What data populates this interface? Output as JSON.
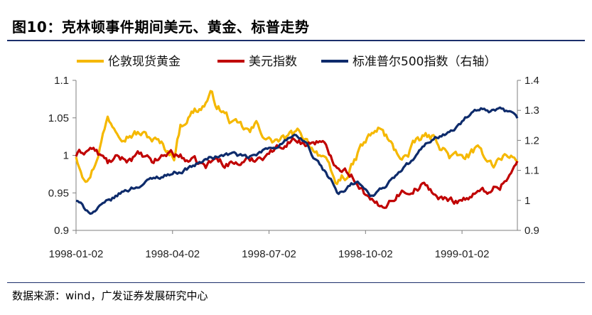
{
  "figure": {
    "title": "图10：克林顿事件期间美元、黄金、标普走势",
    "source": "数据来源：wind，广发证券发展研究中心"
  },
  "chart_data": {
    "type": "line",
    "title": "图10：克林顿事件期间美元、黄金、标普走势",
    "x_ticks": [
      "1998-01-02",
      "1998-04-02",
      "1998-07-02",
      "1998-10-02",
      "1999-01-02"
    ],
    "x_tick_index": [
      0,
      61,
      122,
      183,
      244
    ],
    "n_points": 280,
    "left_axis": {
      "min": 0.9,
      "max": 1.1,
      "ticks": [
        "0.9",
        "0.95",
        "1",
        "1.05",
        "1.1"
      ],
      "tick_values": [
        0.9,
        0.95,
        1.0,
        1.05,
        1.1
      ]
    },
    "right_axis": {
      "min": 0.9,
      "max": 1.4,
      "ticks": [
        "0.9",
        "1",
        "1.1",
        "1.2",
        "1.3",
        "1.4"
      ],
      "tick_values": [
        0.9,
        1.0,
        1.1,
        1.2,
        1.3,
        1.4
      ]
    },
    "series": [
      {
        "name": "伦敦现货黄金",
        "axis": "left",
        "color": "#f5b800",
        "anchors": [
          [
            0,
            1.0
          ],
          [
            4,
            0.98
          ],
          [
            8,
            0.97
          ],
          [
            12,
            0.99
          ],
          [
            16,
            1.02
          ],
          [
            20,
            1.05
          ],
          [
            24,
            1.04
          ],
          [
            30,
            1.03
          ],
          [
            40,
            1.03
          ],
          [
            50,
            1.02
          ],
          [
            56,
            1.01
          ],
          [
            62,
            1.0
          ],
          [
            66,
            1.04
          ],
          [
            70,
            1.05
          ],
          [
            75,
            1.06
          ],
          [
            80,
            1.065
          ],
          [
            85,
            1.08
          ],
          [
            88,
            1.07
          ],
          [
            92,
            1.06
          ],
          [
            96,
            1.05
          ],
          [
            100,
            1.04
          ],
          [
            106,
            1.035
          ],
          [
            110,
            1.03
          ],
          [
            114,
            1.04
          ],
          [
            118,
            1.03
          ],
          [
            122,
            1.02
          ],
          [
            130,
            1.02
          ],
          [
            136,
            1.025
          ],
          [
            142,
            1.03
          ],
          [
            146,
            1.02
          ],
          [
            150,
            1.01
          ],
          [
            156,
            1.0
          ],
          [
            160,
            0.98
          ],
          [
            164,
            0.96
          ],
          [
            168,
            0.97
          ],
          [
            172,
            0.975
          ],
          [
            176,
            0.99
          ],
          [
            180,
            1.01
          ],
          [
            184,
            1.02
          ],
          [
            188,
            1.03
          ],
          [
            192,
            1.035
          ],
          [
            196,
            1.025
          ],
          [
            200,
            1.01
          ],
          [
            204,
            1.0
          ],
          [
            210,
            1.0
          ],
          [
            216,
            1.02
          ],
          [
            222,
            1.025
          ],
          [
            228,
            1.02
          ],
          [
            232,
            1.01
          ],
          [
            236,
            1.0
          ],
          [
            244,
            0.995
          ],
          [
            252,
            1.005
          ],
          [
            258,
            1.0
          ],
          [
            264,
            0.99
          ],
          [
            270,
            1.0
          ],
          [
            279,
            0.995
          ]
        ],
        "noise": 0.006
      },
      {
        "name": "美元指数",
        "axis": "left",
        "color": "#c00000",
        "anchors": [
          [
            0,
            1.0
          ],
          [
            5,
            1.005
          ],
          [
            10,
            1.01
          ],
          [
            15,
            1.0
          ],
          [
            20,
            0.99
          ],
          [
            26,
            0.995
          ],
          [
            32,
            0.995
          ],
          [
            40,
            1.0
          ],
          [
            48,
            0.99
          ],
          [
            56,
            1.0
          ],
          [
            60,
            1.005
          ],
          [
            64,
            1.0
          ],
          [
            70,
            0.995
          ],
          [
            76,
            0.99
          ],
          [
            82,
            0.985
          ],
          [
            88,
            0.995
          ],
          [
            94,
            0.99
          ],
          [
            100,
            0.99
          ],
          [
            106,
            0.99
          ],
          [
            112,
            0.995
          ],
          [
            118,
            1.0
          ],
          [
            122,
            1.005
          ],
          [
            128,
            1.01
          ],
          [
            134,
            1.02
          ],
          [
            140,
            1.02
          ],
          [
            146,
            1.015
          ],
          [
            152,
            1.02
          ],
          [
            156,
            1.015
          ],
          [
            160,
            1.0
          ],
          [
            164,
            0.99
          ],
          [
            168,
            0.985
          ],
          [
            172,
            0.98
          ],
          [
            176,
            0.97
          ],
          [
            180,
            0.96
          ],
          [
            184,
            0.945
          ],
          [
            188,
            0.935
          ],
          [
            192,
            0.93
          ],
          [
            198,
            0.94
          ],
          [
            204,
            0.95
          ],
          [
            212,
            0.955
          ],
          [
            218,
            0.96
          ],
          [
            224,
            0.955
          ],
          [
            228,
            0.945
          ],
          [
            232,
            0.94
          ],
          [
            240,
            0.94
          ],
          [
            248,
            0.945
          ],
          [
            256,
            0.95
          ],
          [
            262,
            0.955
          ],
          [
            268,
            0.96
          ],
          [
            274,
            0.975
          ],
          [
            279,
            0.99
          ]
        ],
        "noise": 0.005
      },
      {
        "name": "标准普尔500指数（右轴）",
        "axis": "right",
        "color": "#0e2b6b",
        "anchors": [
          [
            0,
            1.0
          ],
          [
            5,
            0.975
          ],
          [
            10,
            0.96
          ],
          [
            16,
            0.98
          ],
          [
            22,
            1.0
          ],
          [
            30,
            1.03
          ],
          [
            40,
            1.05
          ],
          [
            50,
            1.075
          ],
          [
            60,
            1.09
          ],
          [
            68,
            1.1
          ],
          [
            76,
            1.12
          ],
          [
            84,
            1.14
          ],
          [
            92,
            1.15
          ],
          [
            100,
            1.155
          ],
          [
            108,
            1.14
          ],
          [
            114,
            1.15
          ],
          [
            120,
            1.17
          ],
          [
            126,
            1.18
          ],
          [
            132,
            1.2
          ],
          [
            138,
            1.21
          ],
          [
            142,
            1.2
          ],
          [
            146,
            1.19
          ],
          [
            150,
            1.14
          ],
          [
            154,
            1.12
          ],
          [
            158,
            1.09
          ],
          [
            162,
            1.06
          ],
          [
            166,
            1.02
          ],
          [
            170,
            1.03
          ],
          [
            174,
            1.05
          ],
          [
            178,
            1.06
          ],
          [
            182,
            1.04
          ],
          [
            186,
            1.01
          ],
          [
            190,
            1.03
          ],
          [
            196,
            1.05
          ],
          [
            202,
            1.08
          ],
          [
            208,
            1.11
          ],
          [
            214,
            1.14
          ],
          [
            220,
            1.18
          ],
          [
            226,
            1.21
          ],
          [
            232,
            1.22
          ],
          [
            238,
            1.23
          ],
          [
            244,
            1.26
          ],
          [
            250,
            1.29
          ],
          [
            256,
            1.3
          ],
          [
            262,
            1.29
          ],
          [
            268,
            1.3
          ],
          [
            274,
            1.29
          ],
          [
            279,
            1.27
          ]
        ],
        "noise": 0.007
      }
    ]
  },
  "legend": {
    "items": [
      {
        "label": "伦敦现货黄金",
        "color": "#f5b800"
      },
      {
        "label": "美元指数",
        "color": "#c00000"
      },
      {
        "label": "标准普尔500指数（右轴）",
        "color": "#0e2b6b"
      }
    ]
  }
}
